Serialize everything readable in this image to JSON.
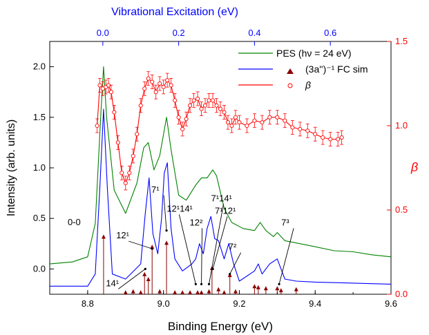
{
  "chart_data": {
    "type": "line",
    "xlabel": "Binding Energy (eV)",
    "ylabel": "Intensity (arb. units)",
    "top_xlabel": "Vibrational Excitation (eV)",
    "right_ylabel": "β",
    "xlim": [
      8.7,
      9.6
    ],
    "ylim": [
      -0.25,
      2.25
    ],
    "top_xlim": [
      -0.14,
      0.76
    ],
    "right_ylim": [
      0.0,
      1.5
    ],
    "x_ticks": [
      "8.8",
      "9.0",
      "9.2",
      "9.4",
      "9.6"
    ],
    "y_ticks": [
      "0.0",
      "0.5",
      "1.0",
      "1.5",
      "2.0"
    ],
    "top_ticks": [
      "0.0",
      "0.2",
      "0.4",
      "0.6"
    ],
    "right_ticks": [
      "0.0",
      "0.5",
      "1.0",
      "1.5"
    ],
    "colors": {
      "pes": "#008000",
      "fc": "#0000ff",
      "beta": "#ff0000",
      "sticks": "#8b0000",
      "top_axis": "#0000ff",
      "right_axis": "#ff0000"
    },
    "legend": {
      "position": "top-right",
      "pes": "PES (hν = 24 eV)",
      "fc": "(3a'')⁻¹ FC sim",
      "beta": "β"
    },
    "series": [
      {
        "name": "PES (hν = 24 eV)",
        "x": [
          8.7,
          8.76,
          8.8,
          8.82,
          8.835,
          8.842,
          8.85,
          8.87,
          8.9,
          8.93,
          8.948,
          8.96,
          8.975,
          8.99,
          9.008,
          9.02,
          9.04,
          9.06,
          9.085,
          9.1,
          9.115,
          9.13,
          9.14,
          9.16,
          9.18,
          9.21,
          9.24,
          9.255,
          9.27,
          9.29,
          9.3,
          9.32,
          9.36,
          9.4,
          9.45,
          9.5,
          9.55,
          9.6
        ],
        "values": [
          0.05,
          0.07,
          0.12,
          0.45,
          1.55,
          2.0,
          1.5,
          0.78,
          0.55,
          0.85,
          1.2,
          1.25,
          0.98,
          1.12,
          1.5,
          1.18,
          0.73,
          0.68,
          0.83,
          0.9,
          0.9,
          0.98,
          0.92,
          0.6,
          0.46,
          0.4,
          0.38,
          0.46,
          0.38,
          0.32,
          0.36,
          0.28,
          0.25,
          0.22,
          0.18,
          0.17,
          0.14,
          0.12
        ]
      },
      {
        "name": "(3a'')⁻¹ FC sim",
        "x": [
          8.7,
          8.8,
          8.82,
          8.832,
          8.842,
          8.852,
          8.865,
          8.9,
          8.94,
          8.952,
          8.962,
          8.972,
          8.985,
          8.995,
          9.002,
          9.01,
          9.02,
          9.03,
          9.05,
          9.075,
          9.085,
          9.095,
          9.105,
          9.115,
          9.125,
          9.135,
          9.145,
          9.16,
          9.172,
          9.185,
          9.2,
          9.24,
          9.25,
          9.26,
          9.28,
          9.3,
          9.32,
          9.35,
          9.4,
          9.5,
          9.6
        ],
        "values": [
          -0.17,
          -0.17,
          -0.05,
          0.8,
          1.58,
          0.8,
          -0.05,
          -0.1,
          0.05,
          0.55,
          0.9,
          0.35,
          0.15,
          0.5,
          0.95,
          1.05,
          0.4,
          0.1,
          -0.02,
          0.05,
          0.1,
          0.25,
          0.15,
          0.4,
          0.52,
          0.3,
          0.28,
          0.1,
          0.25,
          0.05,
          -0.12,
          -0.02,
          0.05,
          -0.05,
          0.05,
          0.1,
          -0.1,
          -0.12,
          -0.13,
          -0.14,
          -0.15
        ]
      },
      {
        "name": "β",
        "x": [
          8.825,
          8.832,
          8.84,
          8.848,
          8.855,
          8.862,
          8.87,
          8.88,
          8.89,
          8.9,
          8.91,
          8.92,
          8.93,
          8.94,
          8.95,
          8.96,
          8.97,
          8.98,
          8.99,
          9.0,
          9.01,
          9.02,
          9.03,
          9.04,
          9.05,
          9.06,
          9.07,
          9.08,
          9.09,
          9.1,
          9.11,
          9.12,
          9.13,
          9.14,
          9.15,
          9.16,
          9.17,
          9.18,
          9.19,
          9.2,
          9.22,
          9.24,
          9.26,
          9.28,
          9.3,
          9.32,
          9.34,
          9.36,
          9.38,
          9.4,
          9.42,
          9.44,
          9.46,
          9.47
        ],
        "values": [
          1.0,
          1.24,
          1.22,
          1.23,
          1.24,
          1.2,
          1.08,
          0.9,
          0.72,
          0.66,
          0.72,
          0.82,
          0.95,
          1.12,
          1.22,
          1.28,
          1.26,
          1.2,
          1.25,
          1.23,
          1.27,
          1.24,
          1.15,
          1.05,
          0.98,
          1.04,
          1.12,
          1.15,
          1.16,
          1.1,
          1.12,
          1.15,
          1.15,
          1.12,
          1.1,
          1.08,
          1.02,
          1.0,
          1.05,
          1.02,
          1.0,
          1.03,
          1.02,
          1.05,
          1.05,
          1.03,
          0.99,
          0.98,
          0.97,
          0.95,
          0.93,
          0.92,
          0.92,
          0.93
        ]
      }
    ],
    "sticks": {
      "x": [
        8.842,
        8.95,
        8.96,
        8.97,
        9.008,
        9.09,
        9.1,
        9.128,
        9.145,
        9.175,
        8.9,
        8.92,
        8.94,
        8.99,
        9.03,
        9.05,
        9.07,
        9.12,
        9.16,
        9.19,
        9.24,
        9.25,
        9.27,
        9.3,
        9.31,
        9.35
      ],
      "values": [
        0.57,
        0.2,
        0.15,
        0.47,
        0.51,
        0.02,
        0.02,
        0.26,
        0.05,
        0.19,
        0.02,
        0.03,
        0.02,
        0.03,
        0.02,
        0.02,
        0.02,
        0.03,
        0.02,
        0.03,
        0.08,
        0.07,
        0.06,
        0.06,
        0.04,
        0.05
      ]
    },
    "annotations": [
      {
        "label": "0-0",
        "x": 8.842
      },
      {
        "label": "12¹",
        "x": 8.97
      },
      {
        "label": "14¹",
        "x": 8.952
      },
      {
        "label": "7¹",
        "x": 9.008
      },
      {
        "label": "12¹14¹",
        "x": 9.085
      },
      {
        "label": "12²",
        "x": 9.1
      },
      {
        "label": "7¹14¹",
        "x": 9.12
      },
      {
        "label": "7¹12¹",
        "x": 9.13
      },
      {
        "label": "7²",
        "x": 9.175
      },
      {
        "label": "7³",
        "x": 9.305
      }
    ]
  }
}
